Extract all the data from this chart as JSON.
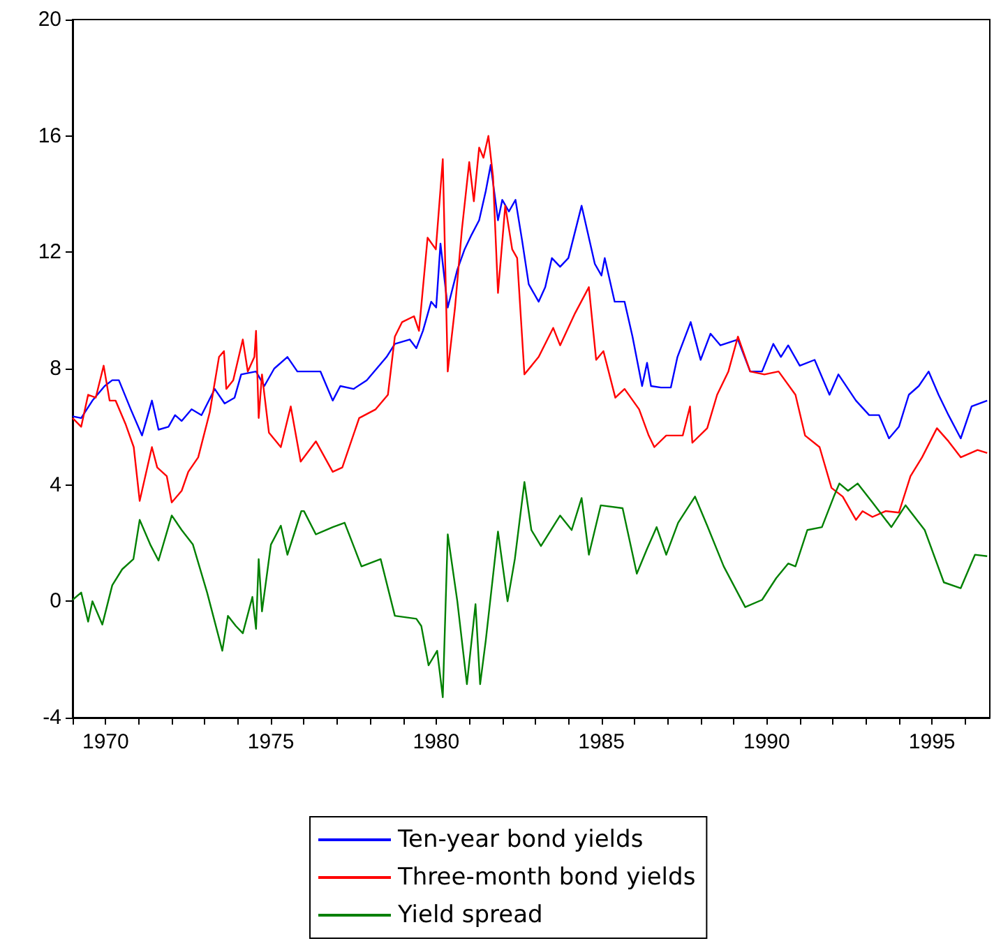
{
  "chart_data": {
    "type": "line",
    "xlim": [
      1969,
      1996.75
    ],
    "xticks": [
      {
        "value": 1969,
        "label": null
      },
      1970,
      {
        "value": 1971,
        "label": null
      },
      {
        "value": 1972,
        "label": null
      },
      {
        "value": 1973,
        "label": null
      },
      {
        "value": 1974,
        "label": null
      },
      1975,
      {
        "value": 1976,
        "label": null
      },
      {
        "value": 1977,
        "label": null
      },
      {
        "value": 1978,
        "label": null
      },
      {
        "value": 1979,
        "label": null
      },
      1980,
      {
        "value": 1981,
        "label": null
      },
      {
        "value": 1982,
        "label": null
      },
      {
        "value": 1983,
        "label": null
      },
      {
        "value": 1984,
        "label": null
      },
      1985,
      {
        "value": 1986,
        "label": null
      },
      {
        "value": 1987,
        "label": null
      },
      {
        "value": 1988,
        "label": null
      },
      {
        "value": 1989,
        "label": null
      },
      1990,
      {
        "value": 1991,
        "label": null
      },
      {
        "value": 1992,
        "label": null
      },
      {
        "value": 1993,
        "label": null
      },
      {
        "value": 1994,
        "label": null
      },
      1995,
      {
        "value": 1996,
        "label": null
      }
    ],
    "ylim": [
      -4,
      20
    ],
    "yticks": [
      -4,
      0,
      4,
      8,
      12,
      16,
      20
    ],
    "legend": "bottom",
    "series": [
      {
        "name": "Ten-year bond yields",
        "color": "#0000ff",
        "x": [
          1969.0,
          1969.26,
          1969.6,
          1969.97,
          1970.2,
          1970.4,
          1970.76,
          1971.1,
          1971.4,
          1971.6,
          1971.9,
          1972.1,
          1972.3,
          1972.6,
          1972.9,
          1973.3,
          1973.6,
          1973.9,
          1974.1,
          1974.55,
          1974.8,
          1975.1,
          1975.5,
          1975.8,
          1976.0,
          1976.5,
          1976.87,
          1977.1,
          1977.5,
          1977.9,
          1978.5,
          1978.75,
          1979.2,
          1979.4,
          1979.6,
          1979.85,
          1980.0,
          1980.13,
          1980.35,
          1980.64,
          1980.86,
          1981.07,
          1981.3,
          1981.5,
          1981.65,
          1981.87,
          1982.0,
          1982.2,
          1982.4,
          1982.6,
          1982.8,
          1983.1,
          1983.3,
          1983.5,
          1983.75,
          1984.0,
          1984.4,
          1984.8,
          1985.0,
          1985.1,
          1985.4,
          1985.7,
          1985.94,
          1986.23,
          1986.38,
          1986.5,
          1986.8,
          1987.1,
          1987.3,
          1987.7,
          1988.0,
          1988.3,
          1988.6,
          1989.13,
          1989.5,
          1989.86,
          1990.2,
          1990.43,
          1990.65,
          1991.0,
          1991.45,
          1991.9,
          1992.17,
          1992.7,
          1993.1,
          1993.4,
          1993.7,
          1994.0,
          1994.3,
          1994.6,
          1994.9,
          1995.2,
          1995.5,
          1995.87,
          1996.2,
          1996.67
        ],
        "values": [
          6.36,
          6.3,
          6.9,
          7.4,
          7.6,
          7.6,
          6.6,
          5.7,
          6.9,
          5.9,
          6.0,
          6.4,
          6.2,
          6.6,
          6.4,
          7.3,
          6.8,
          7.0,
          7.8,
          7.9,
          7.4,
          8.0,
          8.4,
          7.9,
          7.9,
          7.9,
          6.9,
          7.4,
          7.3,
          7.6,
          8.4,
          8.85,
          9.0,
          8.7,
          9.3,
          10.3,
          10.1,
          12.3,
          10.1,
          11.4,
          12.1,
          12.6,
          13.1,
          14.1,
          15.0,
          13.1,
          13.8,
          13.4,
          13.8,
          12.4,
          10.9,
          10.3,
          10.8,
          11.8,
          11.5,
          11.8,
          13.6,
          11.6,
          11.2,
          11.8,
          10.3,
          10.3,
          9.1,
          7.4,
          8.2,
          7.4,
          7.35,
          7.35,
          8.4,
          9.6,
          8.3,
          9.2,
          8.8,
          9.0,
          7.9,
          7.9,
          8.85,
          8.4,
          8.8,
          8.1,
          8.3,
          7.1,
          7.8,
          6.9,
          6.4,
          6.4,
          5.6,
          6.0,
          7.1,
          7.4,
          7.9,
          7.1,
          6.4,
          5.6,
          6.7,
          6.9
        ]
      },
      {
        "name": "Three-month bond yields",
        "color": "#ff0000",
        "x": [
          1969.0,
          1969.26,
          1969.47,
          1969.7,
          1969.94,
          1970.12,
          1970.3,
          1970.6,
          1970.85,
          1971.03,
          1971.4,
          1971.56,
          1971.85,
          1972.0,
          1972.3,
          1972.5,
          1972.8,
          1973.15,
          1973.43,
          1973.58,
          1973.65,
          1973.86,
          1974.15,
          1974.3,
          1974.5,
          1974.55,
          1974.63,
          1974.73,
          1974.94,
          1975.3,
          1975.6,
          1975.9,
          1976.0,
          1976.36,
          1976.87,
          1977.16,
          1977.67,
          1978.17,
          1978.54,
          1978.75,
          1978.97,
          1979.33,
          1979.48,
          1979.74,
          1979.99,
          1980.2,
          1980.35,
          1980.57,
          1980.78,
          1981.0,
          1981.14,
          1981.3,
          1981.43,
          1981.58,
          1981.72,
          1981.87,
          1982.09,
          1982.3,
          1982.45,
          1982.67,
          1983.1,
          1983.54,
          1983.75,
          1984.2,
          1984.62,
          1984.84,
          1985.06,
          1985.42,
          1985.7,
          1986.14,
          1986.43,
          1986.6,
          1986.96,
          1987.46,
          1987.68,
          1987.75,
          1988.2,
          1988.5,
          1988.84,
          1989.13,
          1989.5,
          1989.93,
          1990.36,
          1990.87,
          1991.16,
          1991.6,
          1991.96,
          1992.3,
          1992.7,
          1992.9,
          1993.2,
          1993.6,
          1994.0,
          1994.35,
          1994.7,
          1995.15,
          1995.5,
          1995.87,
          1996.38,
          1996.67
        ],
        "values": [
          6.3,
          6.0,
          7.1,
          7.0,
          8.1,
          6.9,
          6.9,
          6.1,
          5.3,
          3.45,
          5.3,
          4.6,
          4.3,
          3.4,
          3.8,
          4.45,
          4.95,
          6.5,
          8.4,
          8.6,
          7.3,
          7.6,
          9.0,
          7.9,
          8.4,
          9.3,
          6.3,
          7.8,
          5.8,
          5.3,
          6.7,
          4.8,
          4.95,
          5.5,
          4.45,
          4.6,
          6.3,
          6.6,
          7.1,
          9.1,
          9.6,
          9.8,
          9.3,
          12.5,
          12.1,
          15.2,
          7.9,
          10.1,
          12.8,
          15.1,
          13.75,
          15.6,
          15.25,
          16.0,
          14.6,
          10.6,
          13.6,
          12.1,
          11.8,
          7.8,
          8.4,
          9.4,
          8.8,
          9.9,
          10.8,
          8.3,
          8.6,
          7.0,
          7.3,
          6.6,
          5.7,
          5.3,
          5.7,
          5.7,
          6.7,
          5.45,
          5.95,
          7.1,
          7.9,
          9.1,
          7.9,
          7.8,
          7.9,
          7.1,
          5.7,
          5.3,
          3.9,
          3.6,
          2.8,
          3.1,
          2.9,
          3.1,
          3.05,
          4.3,
          4.95,
          5.95,
          5.5,
          4.95,
          5.2,
          5.1
        ]
      },
      {
        "name": "Yield spread",
        "color": "#008000",
        "x": [
          1969.0,
          1969.26,
          1969.47,
          1969.6,
          1969.9,
          1970.2,
          1970.5,
          1970.84,
          1971.03,
          1971.35,
          1971.6,
          1972.0,
          1972.3,
          1972.64,
          1973.07,
          1973.53,
          1973.7,
          1973.94,
          1974.15,
          1974.44,
          1974.55,
          1974.63,
          1974.73,
          1975.0,
          1975.3,
          1975.5,
          1975.92,
          1976.0,
          1976.36,
          1976.87,
          1977.23,
          1977.74,
          1978.32,
          1978.75,
          1979.4,
          1979.55,
          1979.77,
          1980.03,
          1980.2,
          1980.35,
          1980.64,
          1980.93,
          1981.19,
          1981.33,
          1981.5,
          1981.87,
          1982.16,
          1982.38,
          1982.67,
          1982.88,
          1983.17,
          1983.75,
          1984.1,
          1984.4,
          1984.62,
          1984.98,
          1985.64,
          1986.07,
          1986.38,
          1986.67,
          1986.96,
          1987.32,
          1987.83,
          1988.2,
          1988.7,
          1989.35,
          1989.86,
          1990.29,
          1990.65,
          1990.87,
          1991.23,
          1991.67,
          1992.03,
          1992.2,
          1992.46,
          1992.75,
          1993.2,
          1993.77,
          1994.2,
          1994.78,
          1995.36,
          1995.87,
          1996.3,
          1996.67
        ],
        "values": [
          0.05,
          0.3,
          -0.7,
          0.0,
          -0.8,
          0.55,
          1.1,
          1.45,
          2.8,
          1.95,
          1.4,
          2.95,
          2.45,
          1.95,
          0.3,
          -1.7,
          -0.5,
          -0.85,
          -1.1,
          0.15,
          -0.95,
          1.45,
          -0.35,
          1.95,
          2.6,
          1.6,
          3.1,
          3.1,
          2.3,
          2.55,
          2.7,
          1.2,
          1.45,
          -0.5,
          -0.6,
          -0.85,
          -2.2,
          -1.7,
          -3.3,
          2.3,
          0.0,
          -2.85,
          -0.1,
          -2.85,
          -1.35,
          2.4,
          0.0,
          1.45,
          4.1,
          2.45,
          1.9,
          2.95,
          2.45,
          3.55,
          1.6,
          3.3,
          3.2,
          0.95,
          1.8,
          2.55,
          1.6,
          2.7,
          3.6,
          2.6,
          1.2,
          -0.2,
          0.05,
          0.8,
          1.3,
          1.2,
          2.45,
          2.55,
          3.6,
          4.05,
          3.8,
          4.05,
          3.4,
          2.55,
          3.3,
          2.45,
          0.65,
          0.45,
          1.6,
          1.55
        ]
      }
    ]
  }
}
